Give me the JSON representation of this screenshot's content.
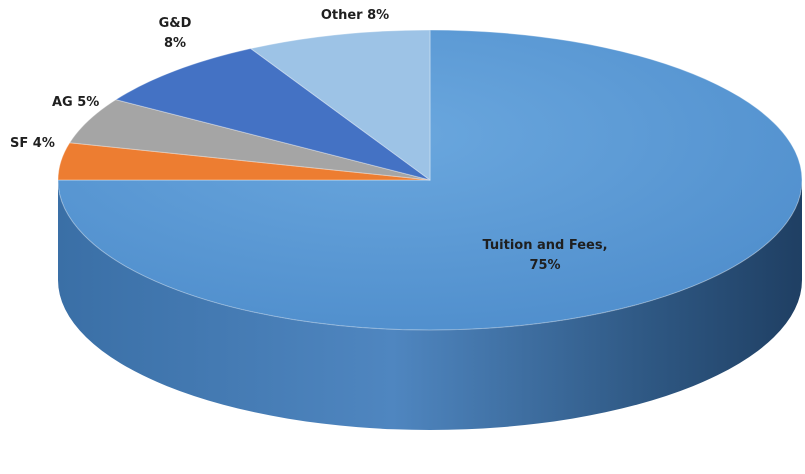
{
  "chart_data": {
    "type": "pie",
    "style": "3d",
    "title": "",
    "slices": [
      {
        "label": "Tuition and Fees",
        "value": 75,
        "display": "Tuition and Fees,",
        "value_label": "75%",
        "color": "#5b9bd5",
        "side_color": "#3f77ad"
      },
      {
        "label": "SF",
        "value": 4,
        "display": "SF 4%",
        "color": "#ed7d31",
        "side_color": "#b85d20"
      },
      {
        "label": "AG",
        "value": 5,
        "display": "AG 5%",
        "color": "#a5a5a5",
        "side_color": "#7a7a7a"
      },
      {
        "label": "G&D",
        "value": 8,
        "display": "G&D",
        "value_label": "8%",
        "color": "#4472c4",
        "side_color": "#2f5597"
      },
      {
        "label": "Other",
        "value": 8,
        "display": "Other 8%",
        "color": "#9dc3e6",
        "side_color": "#7aa6cf"
      }
    ],
    "legend": "none"
  }
}
